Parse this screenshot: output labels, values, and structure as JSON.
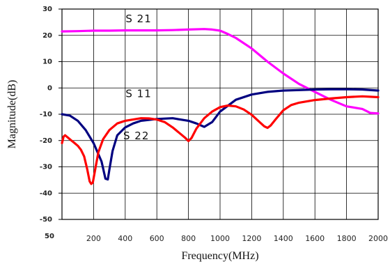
{
  "chart_data": {
    "type": "line",
    "xlabel": "Frequency(MHz)",
    "ylabel": "Magnitude(dB)",
    "xlim": [
      0,
      2000
    ],
    "ylim": [
      -50,
      30
    ],
    "x_ticks": [
      200,
      400,
      600,
      800,
      1000,
      1200,
      1400,
      1600,
      1800,
      2000
    ],
    "x_origin_label": "50",
    "y_ticks": [
      30,
      20,
      10,
      0,
      -10,
      -20,
      -30,
      -40,
      -50
    ],
    "grid": true,
    "series": [
      {
        "name": "S 21",
        "color": "#ff00ff",
        "x": [
          0,
          100,
          200,
          300,
          400,
          500,
          600,
          700,
          800,
          900,
          950,
          1000,
          1050,
          1100,
          1200,
          1300,
          1400,
          1500,
          1600,
          1700,
          1800,
          1900,
          1950,
          2000
        ],
        "y": [
          21.5,
          21.6,
          21.8,
          21.8,
          21.9,
          21.9,
          21.9,
          22.0,
          22.2,
          22.4,
          22.2,
          21.8,
          20.5,
          19.0,
          15.0,
          10.0,
          5.5,
          1.5,
          -1.5,
          -4.5,
          -7.0,
          -8.0,
          -9.5,
          -9.7
        ]
      },
      {
        "name": "S 11",
        "color": "#000080",
        "x": [
          0,
          50,
          100,
          150,
          200,
          250,
          275,
          290,
          300,
          320,
          350,
          400,
          450,
          500,
          600,
          700,
          800,
          850,
          900,
          950,
          1000,
          1100,
          1200,
          1300,
          1400,
          1500,
          1600,
          1700,
          1800,
          1900,
          2000
        ],
        "y": [
          -10,
          -10.5,
          -12.5,
          -16,
          -21,
          -28,
          -34.5,
          -34.8,
          -31,
          -24,
          -18,
          -15,
          -13.5,
          -12.5,
          -11.8,
          -11.5,
          -12.5,
          -13.5,
          -14.8,
          -13,
          -9,
          -4.5,
          -2.5,
          -1.5,
          -1,
          -0.8,
          -0.6,
          -0.5,
          -0.5,
          -0.6,
          -1.0
        ]
      },
      {
        "name": "S 22",
        "color": "#ff0000",
        "x": [
          0,
          10,
          20,
          40,
          60,
          80,
          100,
          120,
          140,
          160,
          175,
          185,
          195,
          210,
          230,
          260,
          300,
          350,
          400,
          450,
          500,
          550,
          600,
          650,
          700,
          750,
          780,
          800,
          820,
          850,
          900,
          950,
          1000,
          1050,
          1100,
          1150,
          1200,
          1250,
          1280,
          1300,
          1320,
          1350,
          1400,
          1450,
          1500,
          1600,
          1700,
          1800,
          1900,
          2000
        ],
        "y": [
          -21,
          -18.5,
          -18,
          -19,
          -20,
          -21,
          -22,
          -23.5,
          -26,
          -31,
          -35.5,
          -36.5,
          -36,
          -31,
          -24.5,
          -19.5,
          -16,
          -13.5,
          -12.5,
          -12,
          -11.5,
          -11.6,
          -12,
          -13,
          -15,
          -17.5,
          -19,
          -20.2,
          -19,
          -15.5,
          -11.5,
          -9,
          -7.3,
          -6.7,
          -7,
          -8.2,
          -10.2,
          -13,
          -14.6,
          -15.2,
          -14.3,
          -12,
          -8.5,
          -6.5,
          -5.6,
          -4.6,
          -4.0,
          -3.5,
          -3.2,
          -3.5
        ]
      }
    ],
    "series_labels": [
      {
        "series": "S 21",
        "text": "S 21"
      },
      {
        "series": "S 11",
        "text": "S 11"
      },
      {
        "series": "S 22",
        "text": "S 22"
      }
    ]
  }
}
